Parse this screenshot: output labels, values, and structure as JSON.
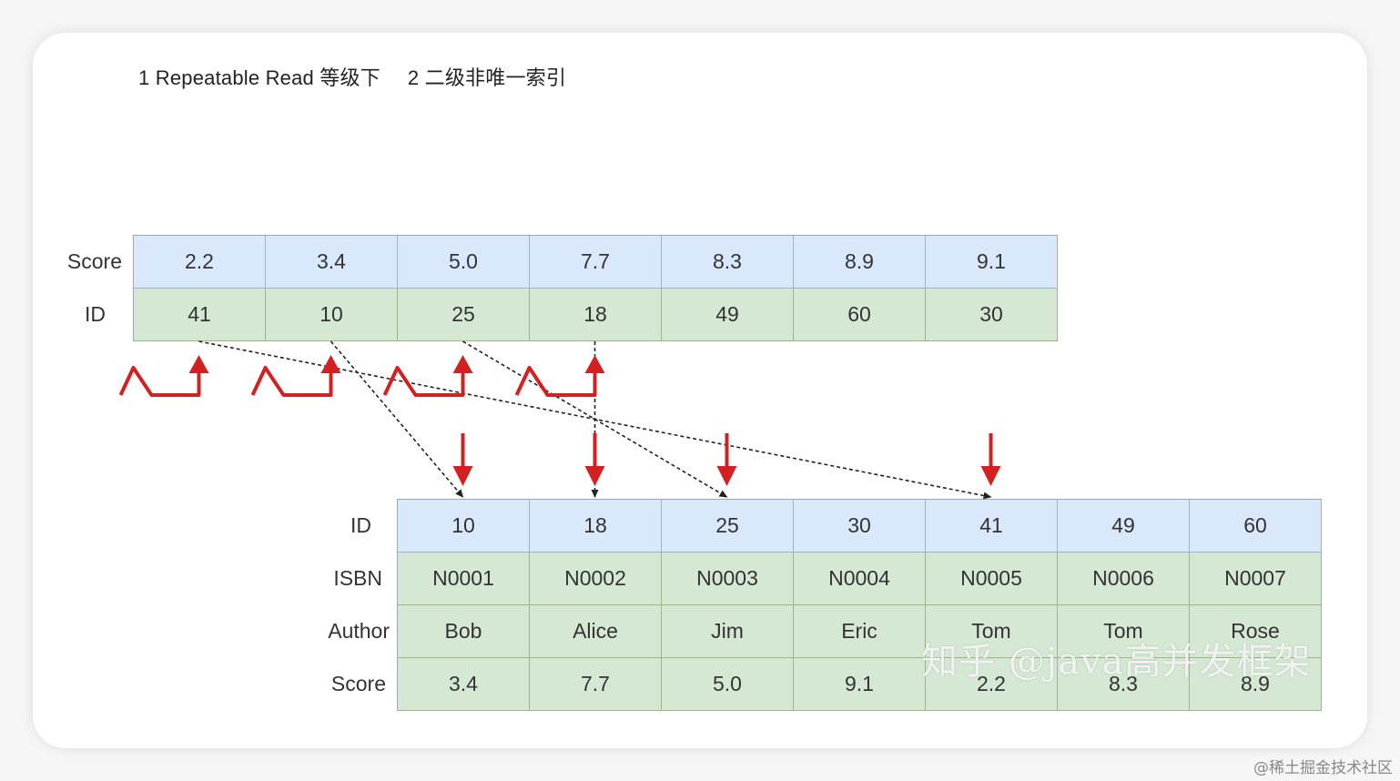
{
  "heading": {
    "part1": "1 Repeatable Read 等级下",
    "part2": "2 二级非唯一索引"
  },
  "secondary_index": {
    "row_labels": [
      "Score",
      "ID"
    ],
    "scores": [
      "2.2",
      "3.4",
      "5.0",
      "7.7",
      "8.3",
      "8.9",
      "9.1"
    ],
    "ids": [
      "41",
      "10",
      "25",
      "18",
      "49",
      "60",
      "30"
    ]
  },
  "primary_table": {
    "row_labels": [
      "ID",
      "ISBN",
      "Author",
      "Score"
    ],
    "ids": [
      "10",
      "18",
      "25",
      "30",
      "41",
      "49",
      "60"
    ],
    "isbns": [
      "N0001",
      "N0002",
      "N0003",
      "N0004",
      "N0005",
      "N0006",
      "N0007"
    ],
    "authors": [
      "Bob",
      "Alice",
      "Jim",
      "Eric",
      "Tom",
      "Tom",
      "Rose"
    ],
    "scores": [
      "3.4",
      "7.7",
      "5.0",
      "9.1",
      "2.2",
      "8.3",
      "8.9"
    ]
  },
  "pointers": [
    {
      "from_id": "41",
      "to_id": "41"
    },
    {
      "from_id": "10",
      "to_id": "10"
    },
    {
      "from_id": "25",
      "to_id": "25"
    },
    {
      "from_id": "18",
      "to_id": "18"
    }
  ],
  "gap_locks": 4,
  "record_locks": [
    "10",
    "18",
    "25",
    "41"
  ],
  "colors": {
    "header_row": "#dae8fc",
    "data_row": "#d5e8d4",
    "lock_arrow": "#d32020",
    "pointer": "#222222"
  },
  "watermark": "知乎 @java高并发框架",
  "footer": "@稀土掘金技术社区"
}
